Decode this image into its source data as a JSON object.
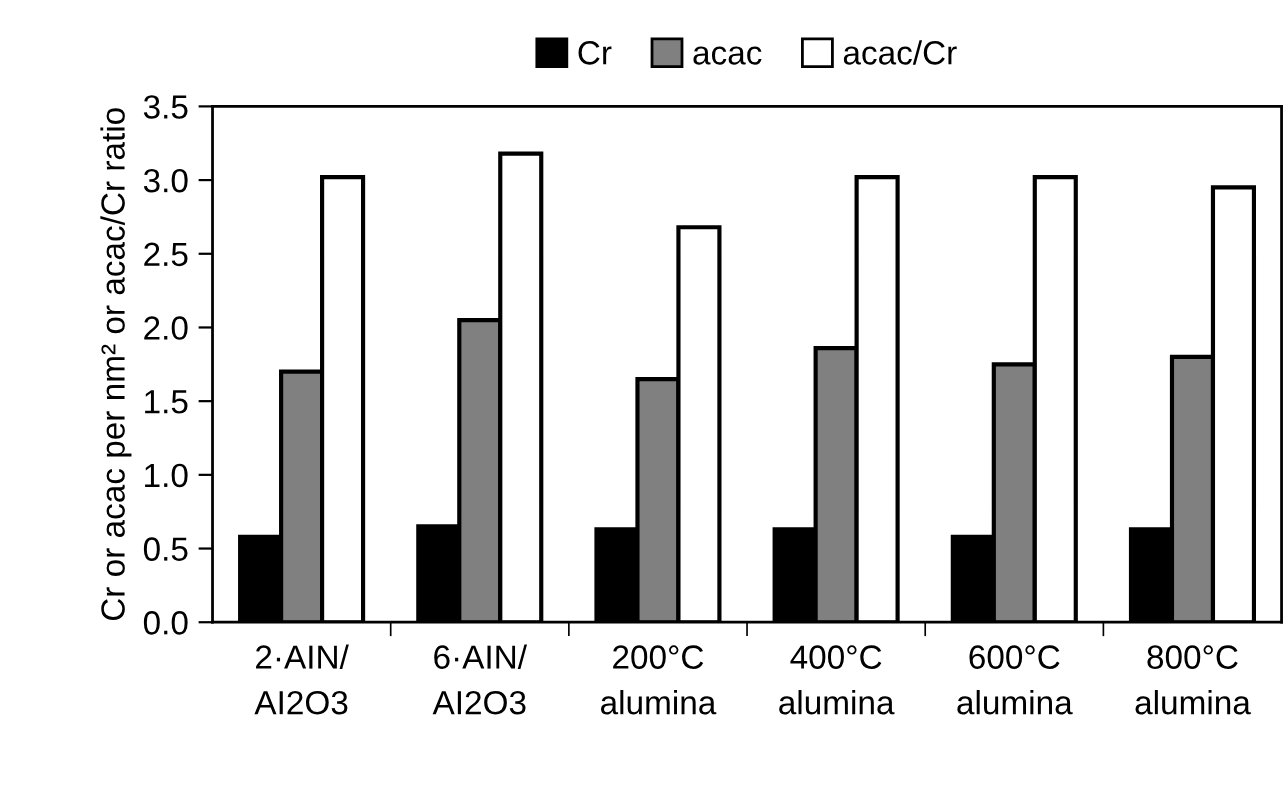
{
  "chart_data": {
    "type": "bar",
    "ylabel": "Cr or acac per nm² or acac/Cr ratio",
    "categories": [
      "2·AIN/\nAI2O3",
      "6·AIN/\nAI2O3",
      "200°C\nalumina",
      "400°C\nalumina",
      "600°C\nalumina",
      "800°C\nalumina"
    ],
    "series": [
      {
        "name": "Cr",
        "color": "#000000",
        "values": [
          0.58,
          0.65,
          0.63,
          0.63,
          0.58,
          0.63
        ]
      },
      {
        "name": "acac",
        "color": "#808080",
        "values": [
          1.7,
          2.05,
          1.65,
          1.86,
          1.75,
          1.8
        ]
      },
      {
        "name": "acac/Cr",
        "color": "#ffffff",
        "values": [
          3.02,
          3.18,
          2.68,
          3.02,
          3.02,
          2.95
        ]
      }
    ],
    "ylim": [
      0.0,
      3.5
    ],
    "yticks": [
      {
        "value": 0,
        "label": "0.0"
      },
      0.5,
      {
        "value": 1,
        "label": "1.0"
      },
      1.5,
      {
        "value": 2,
        "label": "2.0"
      },
      2.5,
      {
        "value": 3,
        "label": "3.0"
      },
      3.5
    ],
    "grid": false,
    "legend": "top"
  }
}
